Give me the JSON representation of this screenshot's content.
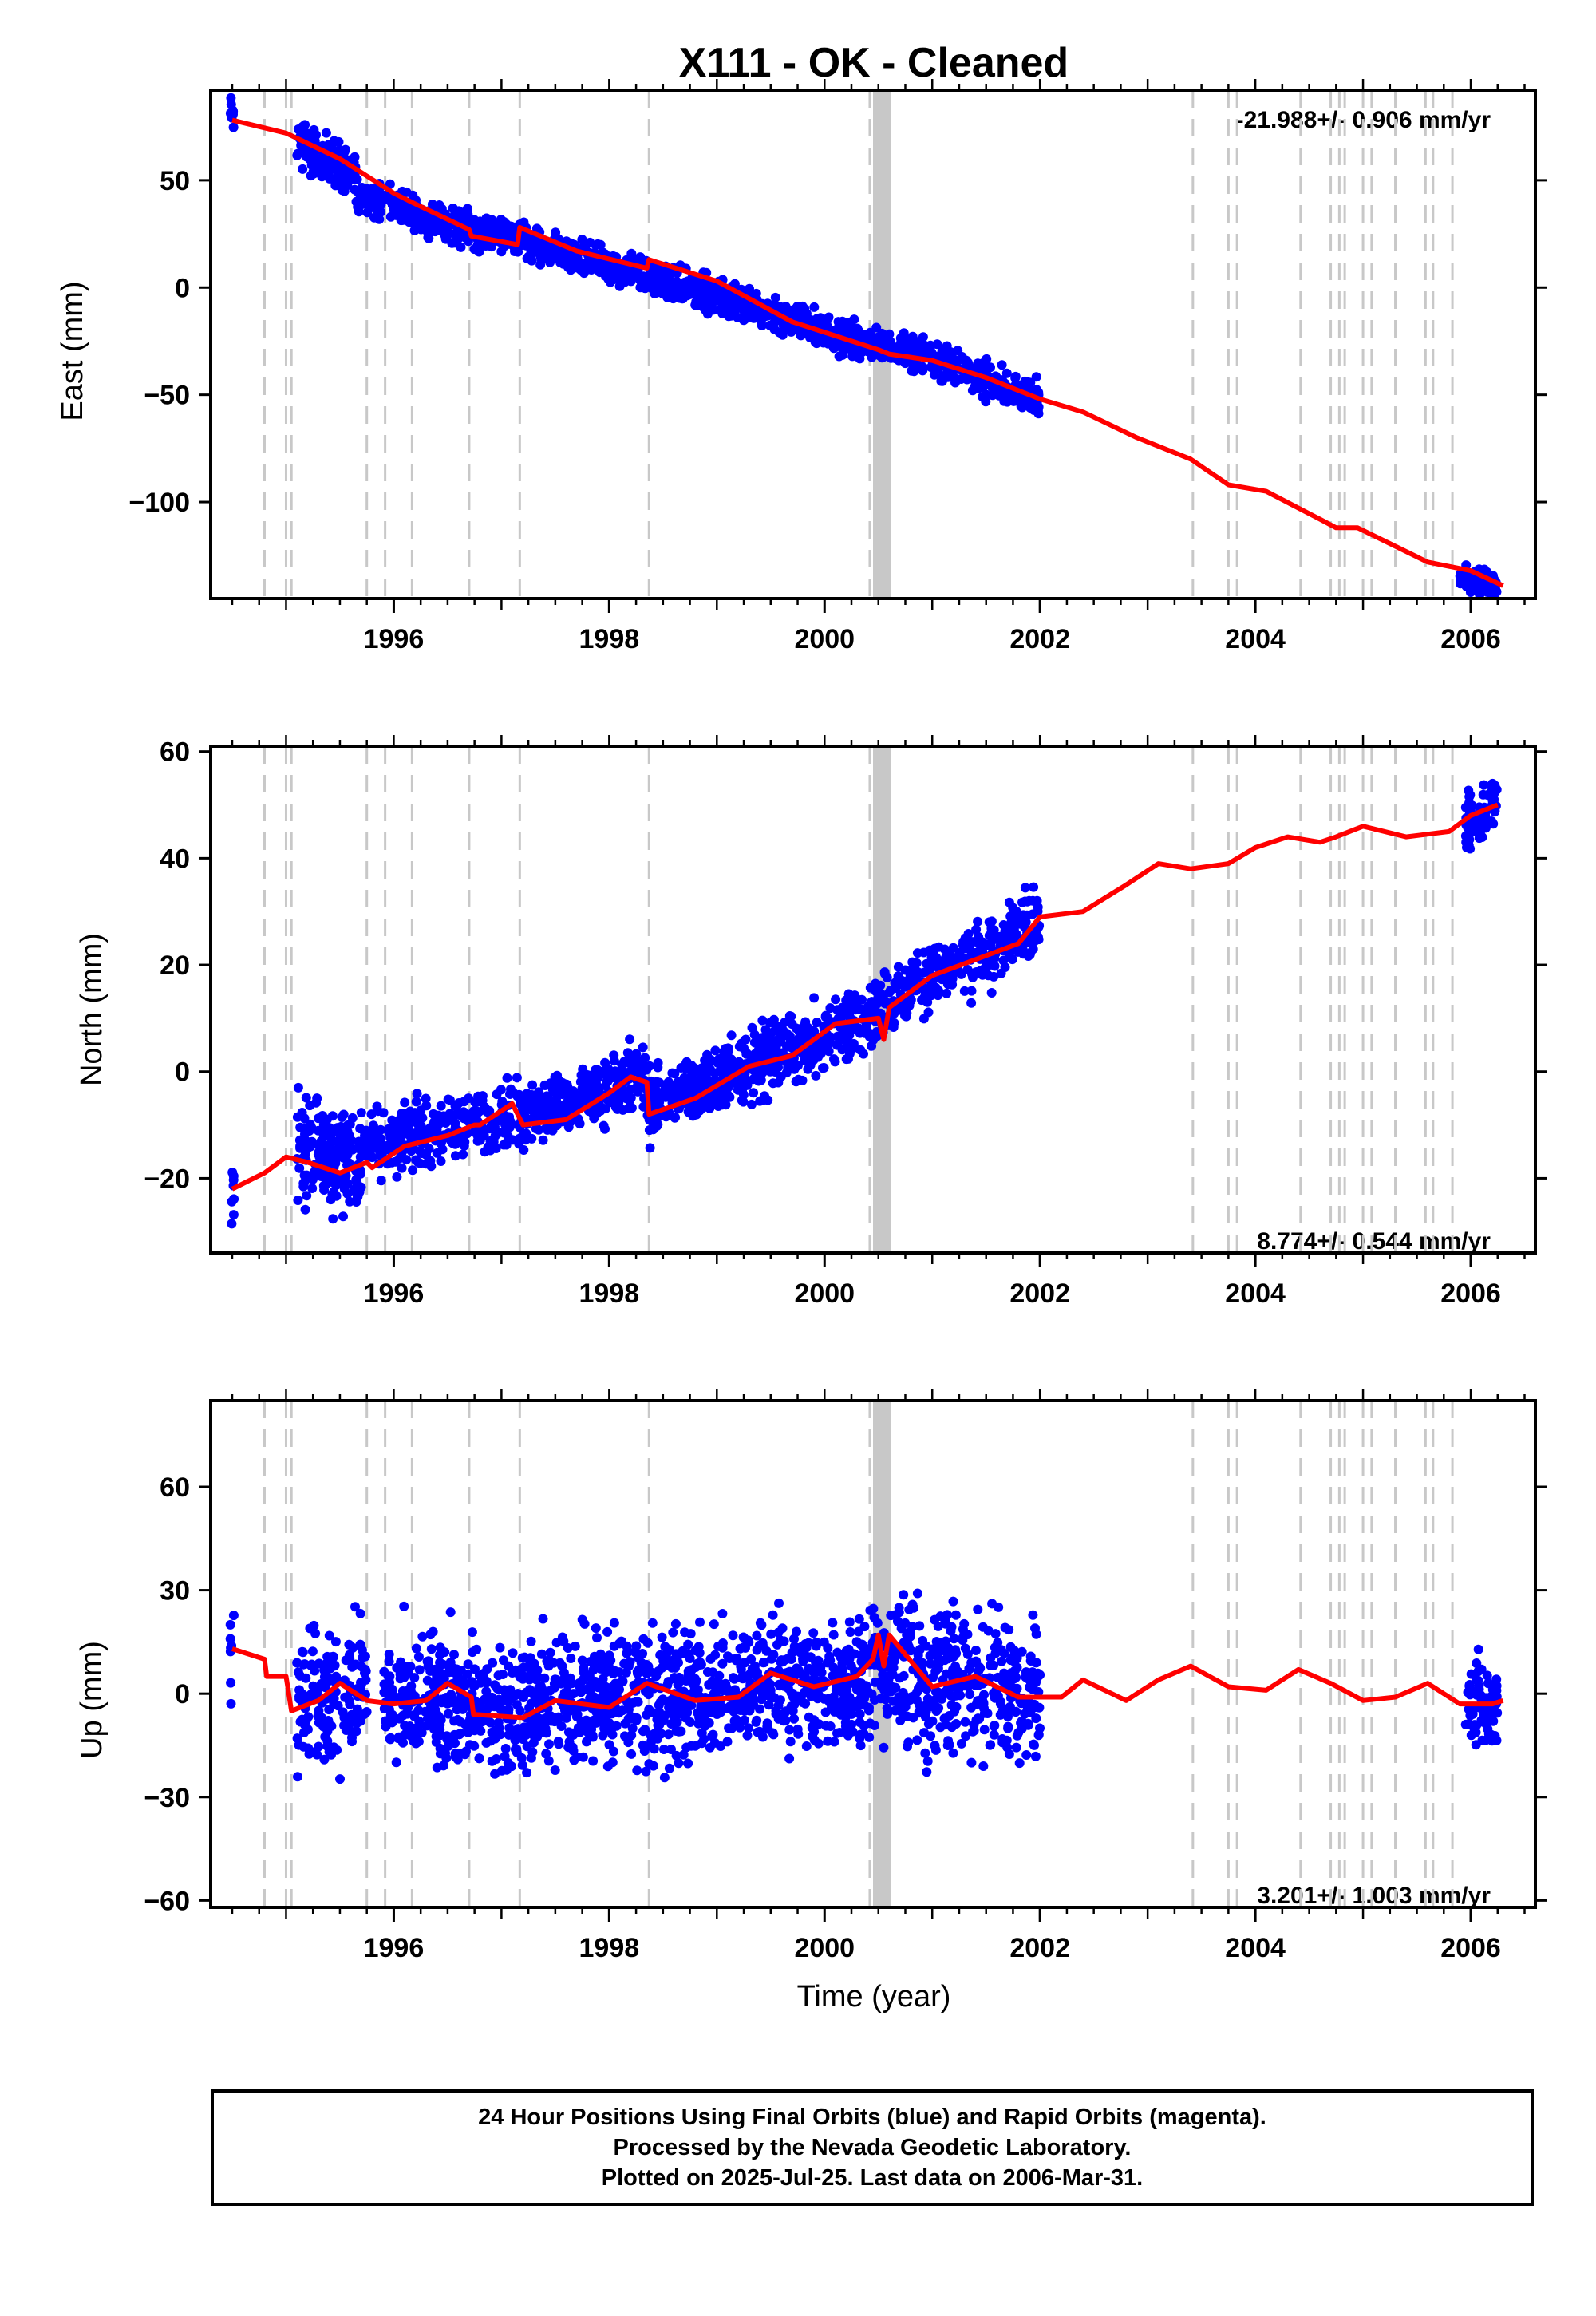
{
  "title": "X111  - OK - Cleaned",
  "xlabel": "Time (year)",
  "colors": {
    "final_orbits": "#0000ff",
    "model": "#ff0000",
    "steps": "#c8c8c8",
    "axes": "#000000"
  },
  "footer": {
    "line1": "24 Hour Positions Using Final Orbits (blue) and Rapid Orbits (magenta).",
    "line2": "Processed by the Nevada Geodetic Laboratory.",
    "line3": "Plotted on 2025-Jul-25. Last data on 2006-Mar-31."
  },
  "chart_data": [
    {
      "type": "scatter",
      "name": "east",
      "ylabel": "East (mm)",
      "rate_label": "-21.988+/- 0.906 mm/yr",
      "rate_position": "top-right",
      "xlim": [
        1994.3,
        2006.6
      ],
      "ylim": [
        -145,
        92
      ],
      "yticks": [
        -100,
        -50,
        0,
        50
      ],
      "ytick_labels": [
        "−100",
        "−50",
        "0",
        "50"
      ],
      "xticks": [
        1996,
        1998,
        2000,
        2002,
        2004,
        2006
      ],
      "xtick_labels": [
        "1996",
        "1998",
        "2000",
        "2002",
        "2004",
        "2006"
      ],
      "model_line": [
        [
          1994.5,
          78
        ],
        [
          1995.0,
          72
        ],
        [
          1995.5,
          60
        ],
        [
          1996.0,
          44
        ],
        [
          1996.2,
          39
        ],
        [
          1996.7,
          27
        ],
        [
          1996.72,
          24
        ],
        [
          1997.15,
          20
        ],
        [
          1997.17,
          28
        ],
        [
          1997.7,
          17
        ],
        [
          1998.35,
          9
        ],
        [
          1998.37,
          13
        ],
        [
          1999.0,
          3
        ],
        [
          1999.7,
          -16
        ],
        [
          2000.5,
          -29
        ],
        [
          2000.6,
          -31
        ],
        [
          2001.0,
          -34
        ],
        [
          2001.5,
          -42
        ],
        [
          2002.0,
          -52
        ],
        [
          2002.4,
          -58
        ],
        [
          2002.9,
          -70
        ],
        [
          2003.4,
          -80
        ],
        [
          2003.75,
          -92
        ],
        [
          2004.1,
          -95
        ],
        [
          2004.6,
          -108
        ],
        [
          2004.75,
          -112
        ],
        [
          2004.95,
          -112
        ],
        [
          2005.6,
          -128
        ],
        [
          2006.0,
          -132
        ],
        [
          2006.3,
          -139
        ]
      ],
      "data_segments": [
        {
          "x_range": [
            1994.48,
            1994.52
          ],
          "y_start": 81,
          "y_end": 78,
          "scatter": 4,
          "n": 8
        },
        {
          "x_range": [
            1995.1,
            1995.65
          ],
          "y_start": 68,
          "y_end": 52,
          "scatter": 5,
          "n": 160
        },
        {
          "x_range": [
            1995.65,
            1996.9
          ],
          "y_start": 44,
          "y_end": 24,
          "scatter": 4,
          "n": 280
        },
        {
          "x_range": [
            1996.9,
            2000.7
          ],
          "y_start": 26,
          "y_end": -30,
          "scatter": 4,
          "n": 900
        },
        {
          "x_range": [
            2000.7,
            2002.0
          ],
          "y_start": -28,
          "y_end": -52,
          "scatter": 4,
          "n": 300
        },
        {
          "x_range": [
            2005.9,
            2006.25
          ],
          "y_start": -134,
          "y_end": -140,
          "scatter": 3,
          "n": 80
        }
      ]
    },
    {
      "type": "scatter",
      "name": "north",
      "ylabel": "North (mm)",
      "rate_label": "8.774+/- 0.544 mm/yr",
      "rate_position": "bottom-right",
      "xlim": [
        1994.3,
        2006.6
      ],
      "ylim": [
        -34,
        61
      ],
      "yticks": [
        -20,
        0,
        20,
        40,
        60
      ],
      "ytick_labels": [
        "−20",
        "0",
        "20",
        "40",
        "60"
      ],
      "xticks": [
        1996,
        1998,
        2000,
        2002,
        2004,
        2006
      ],
      "xtick_labels": [
        "1996",
        "1998",
        "2000",
        "2002",
        "2004",
        "2006"
      ],
      "model_line": [
        [
          1994.5,
          -22
        ],
        [
          1994.8,
          -19
        ],
        [
          1995.0,
          -16
        ],
        [
          1995.2,
          -17
        ],
        [
          1995.5,
          -19
        ],
        [
          1995.75,
          -17
        ],
        [
          1995.8,
          -18
        ],
        [
          1996.1,
          -14
        ],
        [
          1996.5,
          -12
        ],
        [
          1996.75,
          -10
        ],
        [
          1996.8,
          -10
        ],
        [
          1997.1,
          -6
        ],
        [
          1997.2,
          -10
        ],
        [
          1997.6,
          -9
        ],
        [
          1998.0,
          -4
        ],
        [
          1998.2,
          -1
        ],
        [
          1998.35,
          -2
        ],
        [
          1998.37,
          -8
        ],
        [
          1998.8,
          -5
        ],
        [
          1999.3,
          1
        ],
        [
          1999.7,
          3
        ],
        [
          2000.1,
          9
        ],
        [
          2000.5,
          10
        ],
        [
          2000.55,
          6
        ],
        [
          2000.6,
          12
        ],
        [
          2001.0,
          18
        ],
        [
          2001.4,
          21
        ],
        [
          2001.8,
          24
        ],
        [
          2002.0,
          29
        ],
        [
          2002.4,
          30
        ],
        [
          2002.8,
          35
        ],
        [
          2003.1,
          39
        ],
        [
          2003.4,
          38
        ],
        [
          2003.75,
          39
        ],
        [
          2004.0,
          42
        ],
        [
          2004.3,
          44
        ],
        [
          2004.6,
          43
        ],
        [
          2004.75,
          44
        ],
        [
          2005.0,
          46
        ],
        [
          2005.4,
          44
        ],
        [
          2005.8,
          45
        ],
        [
          2006.0,
          48
        ],
        [
          2006.25,
          50
        ]
      ],
      "data_segments": [
        {
          "x_range": [
            1994.48,
            1994.52
          ],
          "y_start": -20,
          "y_end": -26,
          "scatter": 5,
          "n": 8
        },
        {
          "x_range": [
            1995.1,
            1995.7
          ],
          "y_start": -15,
          "y_end": -17,
          "scatter": 5,
          "n": 160
        },
        {
          "x_range": [
            1995.7,
            1997.2
          ],
          "y_start": -14,
          "y_end": -8,
          "scatter": 3,
          "n": 300
        },
        {
          "x_range": [
            1997.2,
            1998.35
          ],
          "y_start": -9,
          "y_end": 0,
          "scatter": 3,
          "n": 280
        },
        {
          "x_range": [
            1998.35,
            2000.5
          ],
          "y_start": -7,
          "y_end": 11,
          "scatter": 3,
          "n": 600
        },
        {
          "x_range": [
            2000.5,
            2002.0
          ],
          "y_start": 12,
          "y_end": 28,
          "scatter": 3,
          "n": 320
        },
        {
          "x_range": [
            2005.95,
            2006.25
          ],
          "y_start": 46,
          "y_end": 51,
          "scatter": 2.5,
          "n": 80
        }
      ]
    },
    {
      "type": "scatter",
      "name": "up",
      "ylabel": "Up (mm)",
      "rate_label": "3.201+/- 1.003 mm/yr",
      "rate_position": "bottom-right",
      "xlim": [
        1994.3,
        2006.6
      ],
      "ylim": [
        -62,
        85
      ],
      "yticks": [
        -60,
        -30,
        0,
        30,
        60
      ],
      "ytick_labels": [
        "−60",
        "−30",
        "0",
        "30",
        "60"
      ],
      "xticks": [
        1996,
        1998,
        2000,
        2002,
        2004,
        2006
      ],
      "xtick_labels": [
        "1996",
        "1998",
        "2000",
        "2002",
        "2004",
        "2006"
      ],
      "model_line": [
        [
          1994.5,
          13
        ],
        [
          1994.8,
          10
        ],
        [
          1994.82,
          5
        ],
        [
          1995.0,
          5
        ],
        [
          1995.02,
          1
        ],
        [
          1995.05,
          -5
        ],
        [
          1995.3,
          -2
        ],
        [
          1995.5,
          3
        ],
        [
          1995.75,
          -2
        ],
        [
          1996.0,
          -3
        ],
        [
          1996.3,
          -2
        ],
        [
          1996.5,
          3
        ],
        [
          1996.72,
          -1
        ],
        [
          1996.74,
          -6
        ],
        [
          1997.2,
          -7
        ],
        [
          1997.5,
          -2
        ],
        [
          1998.0,
          -4
        ],
        [
          1998.35,
          3
        ],
        [
          1998.8,
          -2
        ],
        [
          1999.2,
          -1
        ],
        [
          1999.5,
          6
        ],
        [
          1999.9,
          2
        ],
        [
          2000.3,
          5
        ],
        [
          2000.45,
          10
        ],
        [
          2000.5,
          17
        ],
        [
          2000.55,
          8
        ],
        [
          2000.6,
          17
        ],
        [
          2001.0,
          2
        ],
        [
          2001.4,
          5
        ],
        [
          2001.8,
          -1
        ],
        [
          2002.2,
          -1
        ],
        [
          2002.4,
          4
        ],
        [
          2002.8,
          -2
        ],
        [
          2003.1,
          4
        ],
        [
          2003.4,
          8
        ],
        [
          2003.75,
          2
        ],
        [
          2004.1,
          1
        ],
        [
          2004.4,
          7
        ],
        [
          2004.7,
          3
        ],
        [
          2005.0,
          -2
        ],
        [
          2005.3,
          -1
        ],
        [
          2005.6,
          3
        ],
        [
          2005.9,
          -3
        ],
        [
          2006.2,
          -3
        ],
        [
          2006.3,
          -2
        ]
      ],
      "data_segments": [
        {
          "x_range": [
            1994.48,
            1994.52
          ],
          "y_start": 10,
          "y_end": 8,
          "scatter": 6,
          "n": 8
        },
        {
          "x_range": [
            1995.1,
            1995.75
          ],
          "y_start": -3,
          "y_end": 2,
          "scatter": 10,
          "n": 150
        },
        {
          "x_range": [
            1995.9,
            1997.2
          ],
          "y_start": 0,
          "y_end": -5,
          "scatter": 9,
          "n": 350
        },
        {
          "x_range": [
            1997.2,
            2000.4
          ],
          "y_start": -3,
          "y_end": 4,
          "scatter": 9,
          "n": 900
        },
        {
          "x_range": [
            2000.4,
            2002.0
          ],
          "y_start": 8,
          "y_end": 0,
          "scatter": 10,
          "n": 420
        },
        {
          "x_range": [
            2005.95,
            2006.25
          ],
          "y_start": -3,
          "y_end": -3,
          "scatter": 6,
          "n": 80
        }
      ]
    }
  ],
  "step_lines": [
    1994.8,
    1995.0,
    1995.05,
    1995.75,
    1995.92,
    1996.17,
    1996.7,
    1997.17,
    1998.37,
    2000.42,
    2003.42,
    2003.75,
    2003.83,
    2004.42,
    2004.7,
    2004.78,
    2004.83,
    2005.0,
    2005.08,
    2005.3,
    2005.58,
    2005.65,
    2005.83
  ],
  "step_band": [
    2000.45,
    2000.62
  ]
}
